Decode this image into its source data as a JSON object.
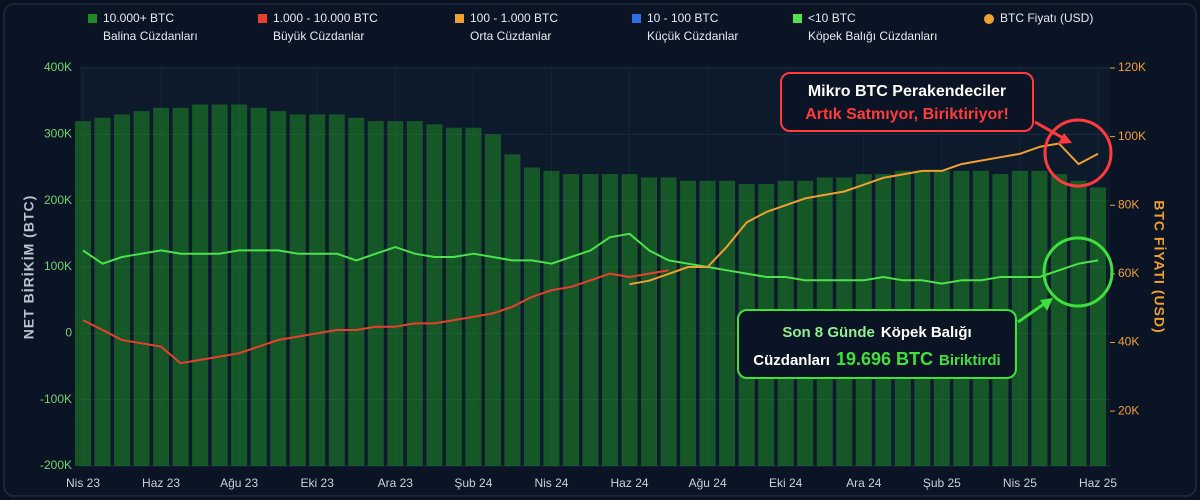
{
  "chart_data": {
    "type": "combo",
    "x": [
      "Nis 23",
      null,
      null,
      null,
      "Haz 23",
      null,
      null,
      null,
      "Ağu 23",
      null,
      null,
      null,
      "Eki 23",
      null,
      null,
      null,
      "Ara 23",
      null,
      null,
      null,
      "Şub 24",
      null,
      null,
      null,
      "Nis 24",
      null,
      null,
      null,
      "Haz 24",
      null,
      null,
      null,
      "Ağu 24",
      null,
      null,
      null,
      "Eki 24",
      null,
      null,
      null,
      "Ara 24",
      null,
      null,
      null,
      "Şub 25",
      null,
      null,
      null,
      "Nis 25",
      null,
      null,
      null,
      "Haz 25"
    ],
    "ylabel": "NET BİRİKİM (BTC)",
    "y2label": "BTC FİYATI (USD)",
    "ylim": [
      -200000,
      400000
    ],
    "yticks": [
      {
        "value": -200000,
        "label": "-200K"
      },
      {
        "value": -100000,
        "label": "-100K"
      },
      {
        "value": 0,
        "label": "0"
      },
      {
        "value": 100000,
        "label": "100K"
      },
      {
        "value": 200000,
        "label": "200K"
      },
      {
        "value": 300000,
        "label": "300K"
      },
      {
        "value": 400000,
        "label": "400K"
      }
    ],
    "y2lim": [
      4000,
      120000
    ],
    "y2ticks": [
      {
        "value": 20000,
        "label": "20K"
      },
      {
        "value": 40000,
        "label": "40K"
      },
      {
        "value": 60000,
        "label": "60K"
      },
      {
        "value": 80000,
        "label": "80K"
      },
      {
        "value": 100000,
        "label": "100K"
      },
      {
        "value": 120000,
        "label": "120K"
      }
    ],
    "series": [
      {
        "name": "10.000+ BTC",
        "description": "Balina Cüzdanları",
        "type": "bar",
        "color": "#1f8a24",
        "marker": "square",
        "values": [
          320000,
          325000,
          330000,
          335000,
          340000,
          340000,
          345000,
          345000,
          345000,
          340000,
          335000,
          330000,
          330000,
          330000,
          325000,
          320000,
          320000,
          320000,
          315000,
          310000,
          310000,
          300000,
          270000,
          250000,
          245000,
          240000,
          240000,
          240000,
          240000,
          235000,
          235000,
          230000,
          230000,
          230000,
          225000,
          225000,
          230000,
          230000,
          235000,
          235000,
          240000,
          240000,
          245000,
          245000,
          245000,
          245000,
          245000,
          240000,
          245000,
          245000,
          240000,
          230000,
          220000
        ]
      },
      {
        "name": "1.000 - 10.000 BTC",
        "description": "Büyük Cüzdanlar",
        "type": "line",
        "color": "#e8402f",
        "marker": "square",
        "values": [
          20000,
          5000,
          -10000,
          -15000,
          -20000,
          -45000,
          -40000,
          -35000,
          -30000,
          -20000,
          -10000,
          -5000,
          0,
          5000,
          5000,
          10000,
          10000,
          15000,
          15000,
          20000,
          25000,
          30000,
          40000,
          55000,
          65000,
          70000,
          80000,
          90000,
          85000,
          90000,
          95000,
          null,
          null,
          null,
          null,
          null,
          null,
          null,
          null,
          null,
          null,
          null,
          null,
          null,
          null,
          null,
          null,
          null,
          null,
          null,
          null,
          null,
          null
        ]
      },
      {
        "name": "100 - 1.000 BTC",
        "description": "Orta Cüzdanlar",
        "type": "line",
        "color": "#f0a030",
        "marker": "square",
        "values": [
          null,
          null,
          null,
          null,
          null,
          null,
          null,
          null,
          null,
          null,
          null,
          null,
          null,
          null,
          null,
          null,
          null,
          null,
          null,
          null,
          null,
          null,
          null,
          null,
          null,
          null,
          null,
          null,
          null,
          null,
          null,
          null,
          null,
          null,
          null,
          null,
          null,
          null,
          null,
          null,
          null,
          null,
          null,
          null,
          null,
          null,
          null,
          null,
          null,
          null,
          null,
          null,
          null
        ]
      },
      {
        "name": "10 - 100 BTC",
        "description": "Küçük Cüzdanlar",
        "type": "line",
        "color": "#2f6fe0",
        "marker": "square",
        "values": [
          null,
          null,
          null,
          null,
          null,
          null,
          null,
          null,
          null,
          null,
          null,
          null,
          null,
          null,
          null,
          null,
          null,
          null,
          null,
          null,
          null,
          null,
          null,
          null,
          null,
          null,
          null,
          null,
          null,
          null,
          null,
          null,
          null,
          null,
          null,
          null,
          null,
          null,
          null,
          null,
          null,
          null,
          null,
          null,
          null,
          null,
          null,
          null,
          null,
          null,
          null,
          null,
          null
        ]
      },
      {
        "name": "<10 BTC",
        "description": "Köpek Balığı Cüzdanları",
        "type": "line",
        "color": "#4ee24e",
        "marker": "square",
        "values": [
          125000,
          105000,
          115000,
          120000,
          125000,
          120000,
          120000,
          120000,
          125000,
          125000,
          125000,
          120000,
          120000,
          120000,
          110000,
          120000,
          130000,
          120000,
          115000,
          115000,
          120000,
          115000,
          110000,
          110000,
          105000,
          115000,
          125000,
          145000,
          150000,
          125000,
          110000,
          105000,
          100000,
          95000,
          90000,
          85000,
          85000,
          80000,
          80000,
          80000,
          80000,
          85000,
          80000,
          80000,
          75000,
          80000,
          80000,
          85000,
          85000,
          85000,
          95000,
          105000,
          110000
        ]
      },
      {
        "name": "BTC Fiyatı (USD)",
        "type": "line",
        "axis": "y2",
        "color": "#f0a030",
        "marker": "circle",
        "values": [
          null,
          null,
          null,
          null,
          null,
          null,
          null,
          null,
          null,
          null,
          null,
          null,
          null,
          null,
          null,
          null,
          null,
          null,
          null,
          null,
          null,
          null,
          null,
          null,
          null,
          null,
          null,
          null,
          57000,
          58000,
          60000,
          62000,
          62000,
          68000,
          75000,
          78000,
          80000,
          82000,
          83000,
          84000,
          86000,
          88000,
          89000,
          90000,
          90000,
          92000,
          93000,
          94000,
          95000,
          97000,
          98000,
          92000,
          95000
        ]
      }
    ],
    "annotations": [
      {
        "lines": [
          [
            "Mikro BTC Perakendeciler"
          ],
          [
            "Artık Satmıyor, Biriktiriyor!"
          ]
        ],
        "color": "#ff3b3b"
      },
      {
        "lines": [
          [
            "Son 8 Günde",
            "Köpek Balığı"
          ],
          [
            "Cüzdanları",
            "19.696 BTC",
            "Biriktirdi"
          ]
        ],
        "color": "#3ee03e"
      }
    ]
  }
}
